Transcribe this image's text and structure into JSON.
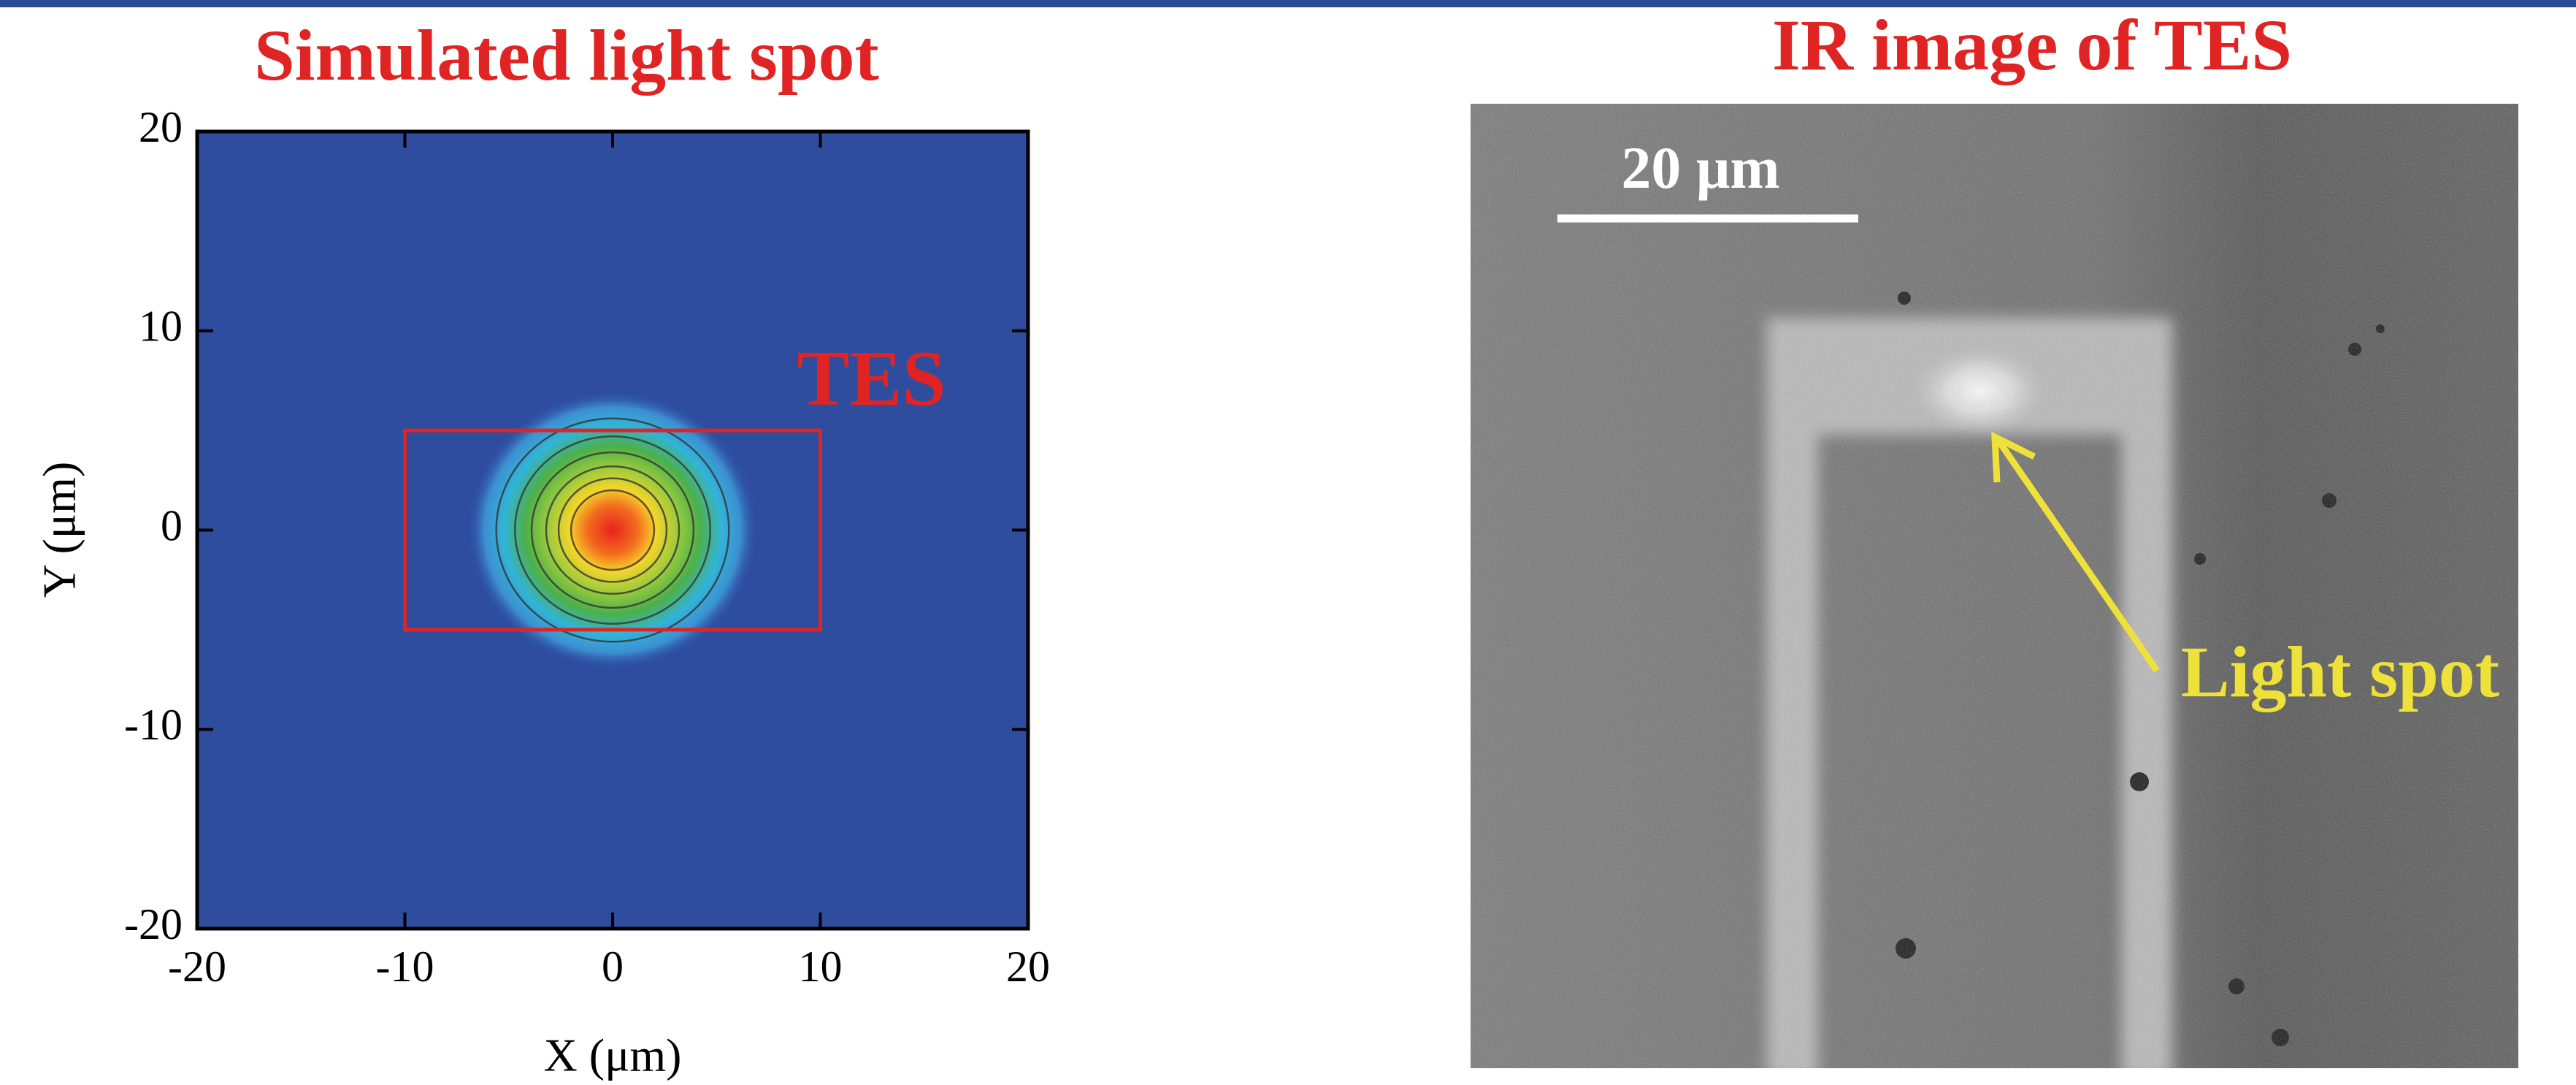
{
  "chart_data": {
    "type": "contour",
    "title": "Simulated light spot",
    "xlabel": "X (μm)",
    "ylabel": "Y (μm)",
    "xlim": [
      -20,
      20
    ],
    "ylim": [
      -20,
      20
    ],
    "xticks": [
      -20,
      -10,
      0,
      10,
      20
    ],
    "yticks": [
      -20,
      -10,
      0,
      10,
      20
    ],
    "background": "#2e4d9f",
    "color": "#e02424",
    "spot_center": [
      0,
      0
    ],
    "contour_radii": [
      5.6,
      4.7,
      3.9,
      3.2,
      2.6,
      2.0
    ],
    "tes_rect": {
      "label": "TES",
      "x": [
        -10,
        10
      ],
      "y": [
        -5,
        5
      ]
    }
  },
  "ir_image": {
    "title": "IR image of TES",
    "scale_bar_label": "20 μm",
    "annotation": "Light spot"
  }
}
